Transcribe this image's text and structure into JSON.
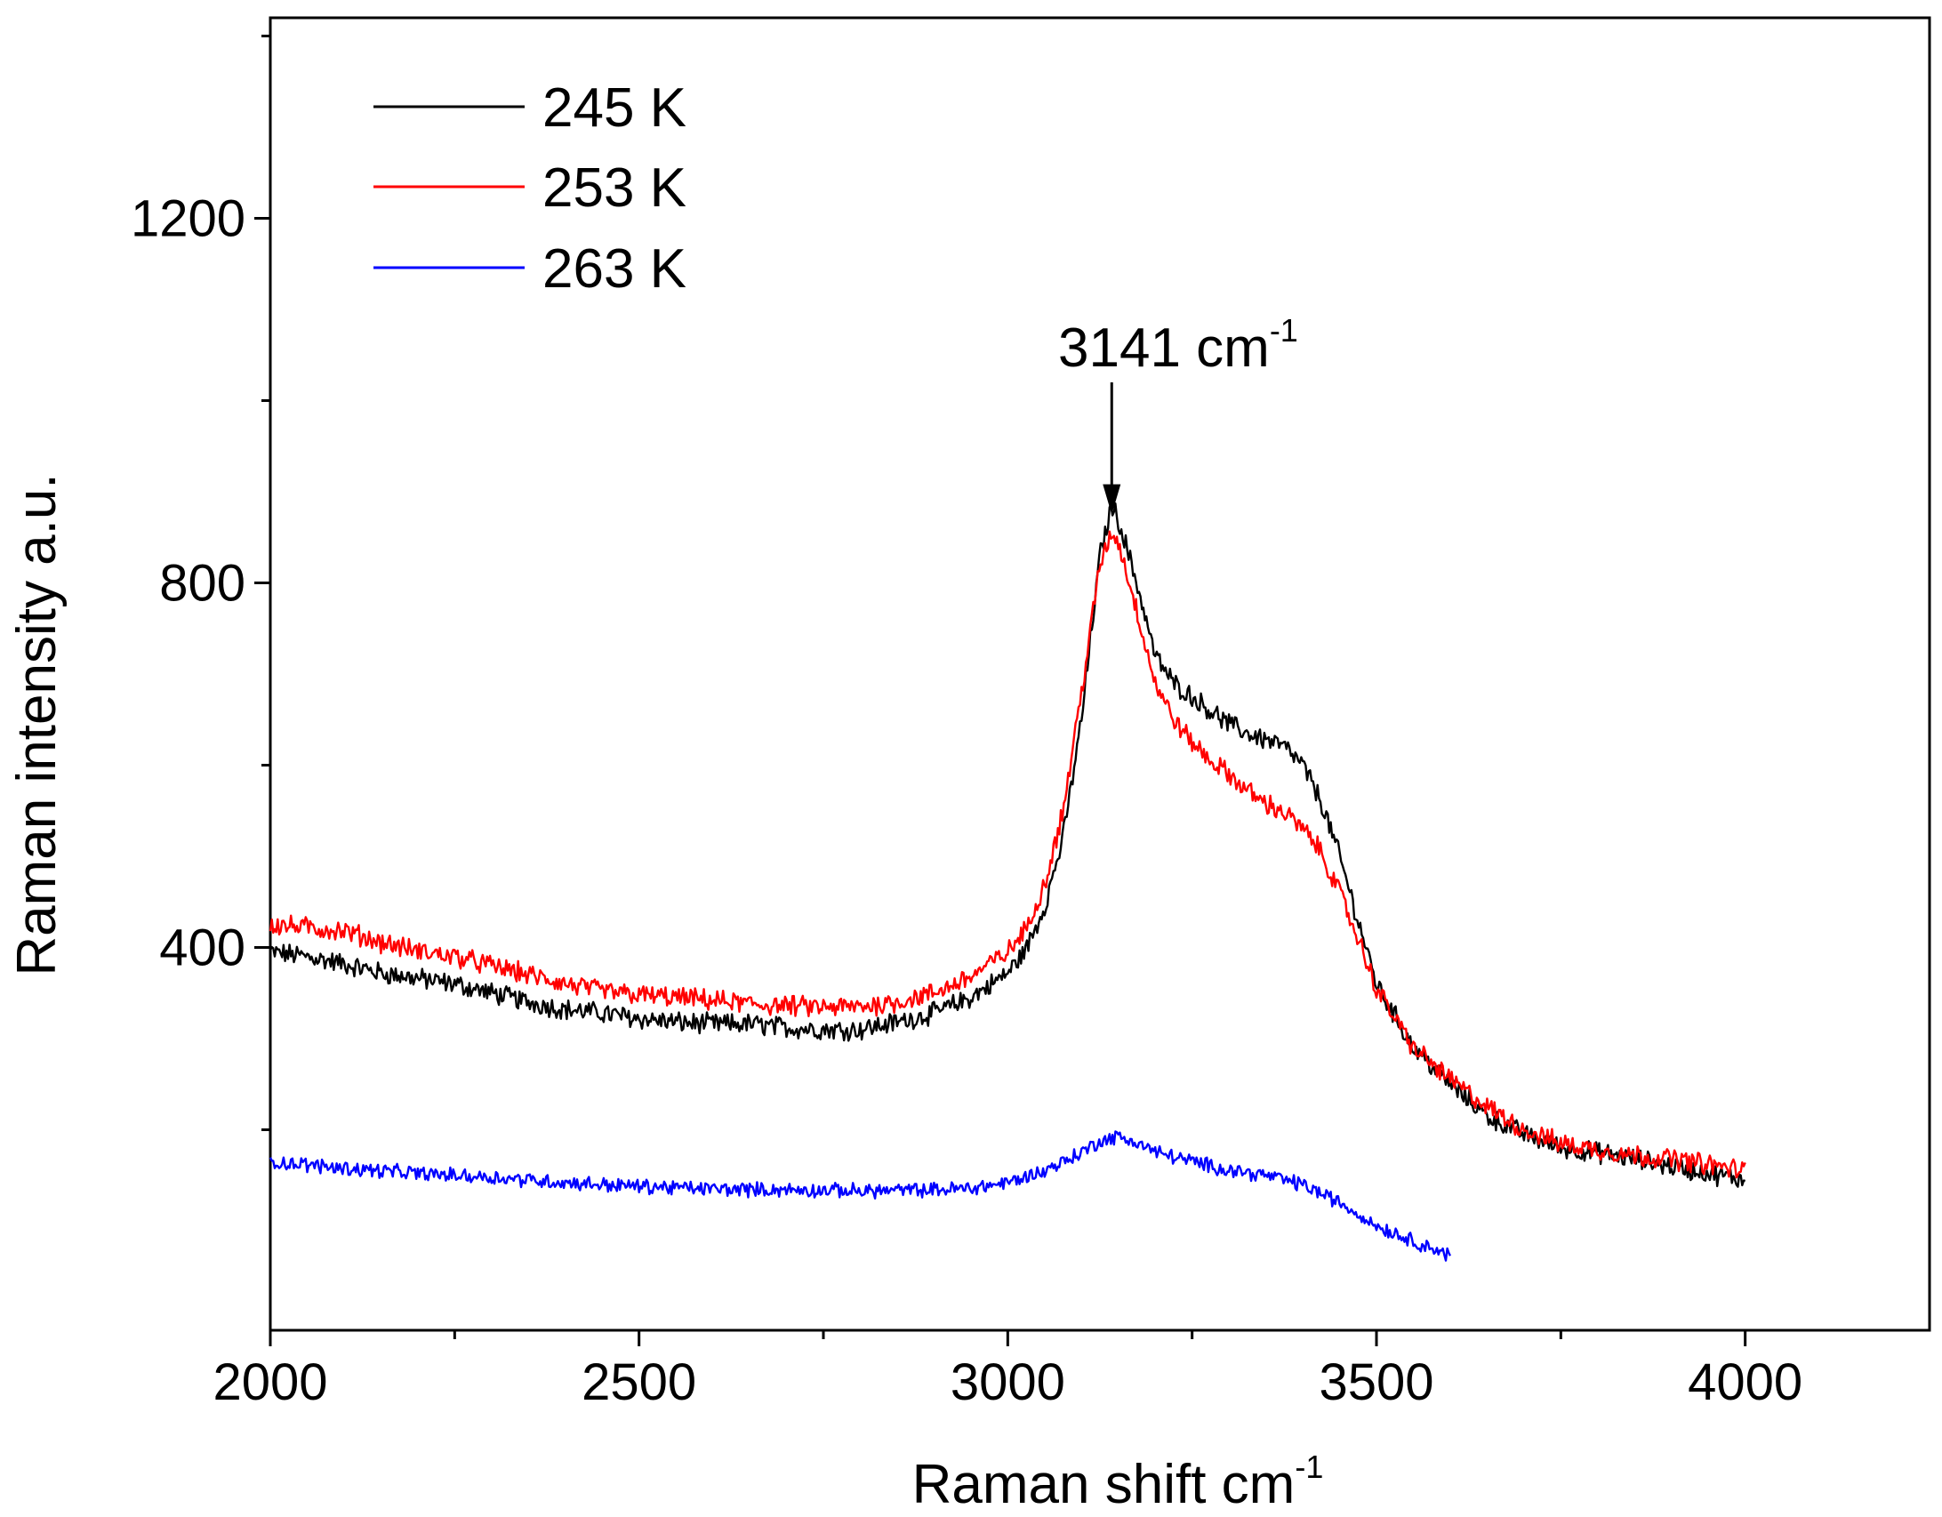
{
  "chart_data": {
    "type": "line",
    "title": "",
    "xlabel": "Raman shift cm",
    "xlabel_sup": "-1",
    "ylabel": "Raman intensity a.u.",
    "xlim": [
      2000,
      4250
    ],
    "ylim": [
      -20,
      1420
    ],
    "x_ticks": [
      "2000",
      "2500",
      "3000",
      "3500",
      "4000"
    ],
    "x_tick_values": [
      2000,
      2500,
      3000,
      3500,
      4000
    ],
    "x_minor_ticks": [
      2250,
      2750,
      3250,
      3750
    ],
    "y_ticks": [
      "400",
      "800",
      "1200"
    ],
    "y_tick_values": [
      400,
      800,
      1200
    ],
    "y_minor_ticks": [
      200,
      600,
      1000,
      1400
    ],
    "legend_position": "top-left",
    "annotation": {
      "text": "3141 cm",
      "sup": "-1",
      "x": 3141,
      "arrow_from_y": 1020,
      "arrow_to_y": 875
    },
    "series": [
      {
        "name": "245 K",
        "color": "#000000",
        "x": [
          2000,
          2050,
          2100,
          2150,
          2200,
          2250,
          2300,
          2350,
          2400,
          2450,
          2500,
          2550,
          2600,
          2650,
          2700,
          2750,
          2800,
          2850,
          2900,
          2950,
          3000,
          3025,
          3050,
          3075,
          3100,
          3125,
          3141,
          3150,
          3175,
          3200,
          3225,
          3250,
          3275,
          3300,
          3325,
          3350,
          3375,
          3400,
          3425,
          3450,
          3475,
          3500,
          3550,
          3600,
          3650,
          3700,
          3750,
          3800,
          3850,
          3900,
          3950,
          4000
        ],
        "values": [
          395,
          390,
          382,
          372,
          366,
          360,
          350,
          340,
          332,
          328,
          322,
          318,
          316,
          316,
          312,
          310,
          310,
          318,
          328,
          345,
          372,
          398,
          445,
          520,
          650,
          830,
          885,
          870,
          800,
          720,
          690,
          675,
          660,
          645,
          635,
          628,
          620,
          600,
          560,
          500,
          430,
          360,
          290,
          250,
          215,
          195,
          180,
          175,
          168,
          160,
          152,
          145
        ]
      },
      {
        "name": "253 K",
        "color": "#ff0000",
        "x": [
          2000,
          2050,
          2100,
          2150,
          2200,
          2250,
          2300,
          2350,
          2400,
          2450,
          2500,
          2550,
          2600,
          2650,
          2700,
          2750,
          2800,
          2850,
          2900,
          2950,
          3000,
          3025,
          3050,
          3075,
          3100,
          3125,
          3141,
          3150,
          3175,
          3200,
          3225,
          3250,
          3275,
          3300,
          3325,
          3350,
          3375,
          3400,
          3425,
          3450,
          3475,
          3500,
          3550,
          3600,
          3650,
          3700,
          3750,
          3800,
          3850,
          3900,
          3950,
          4000
        ],
        "values": [
          425,
          422,
          418,
          406,
          396,
          390,
          380,
          370,
          360,
          352,
          348,
          345,
          342,
          338,
          336,
          334,
          335,
          340,
          350,
          368,
          395,
          420,
          470,
          550,
          680,
          820,
          855,
          845,
          770,
          690,
          650,
          625,
          605,
          590,
          572,
          558,
          548,
          530,
          505,
          460,
          410,
          355,
          290,
          255,
          225,
          200,
          185,
          178,
          172,
          168,
          162,
          155
        ]
      },
      {
        "name": "263 K",
        "color": "#0000ff",
        "x": [
          2000,
          2100,
          2200,
          2300,
          2400,
          2500,
          2600,
          2700,
          2800,
          2900,
          2950,
          3000,
          3050,
          3100,
          3125,
          3150,
          3175,
          3200,
          3250,
          3300,
          3350,
          3400,
          3450,
          3500,
          3550,
          3600
        ],
        "values": [
          165,
          158,
          152,
          148,
          142,
          138,
          135,
          134,
          133,
          134,
          136,
          142,
          155,
          175,
          188,
          192,
          186,
          176,
          165,
          156,
          150,
          140,
          120,
          95,
          78,
          62
        ]
      }
    ]
  }
}
